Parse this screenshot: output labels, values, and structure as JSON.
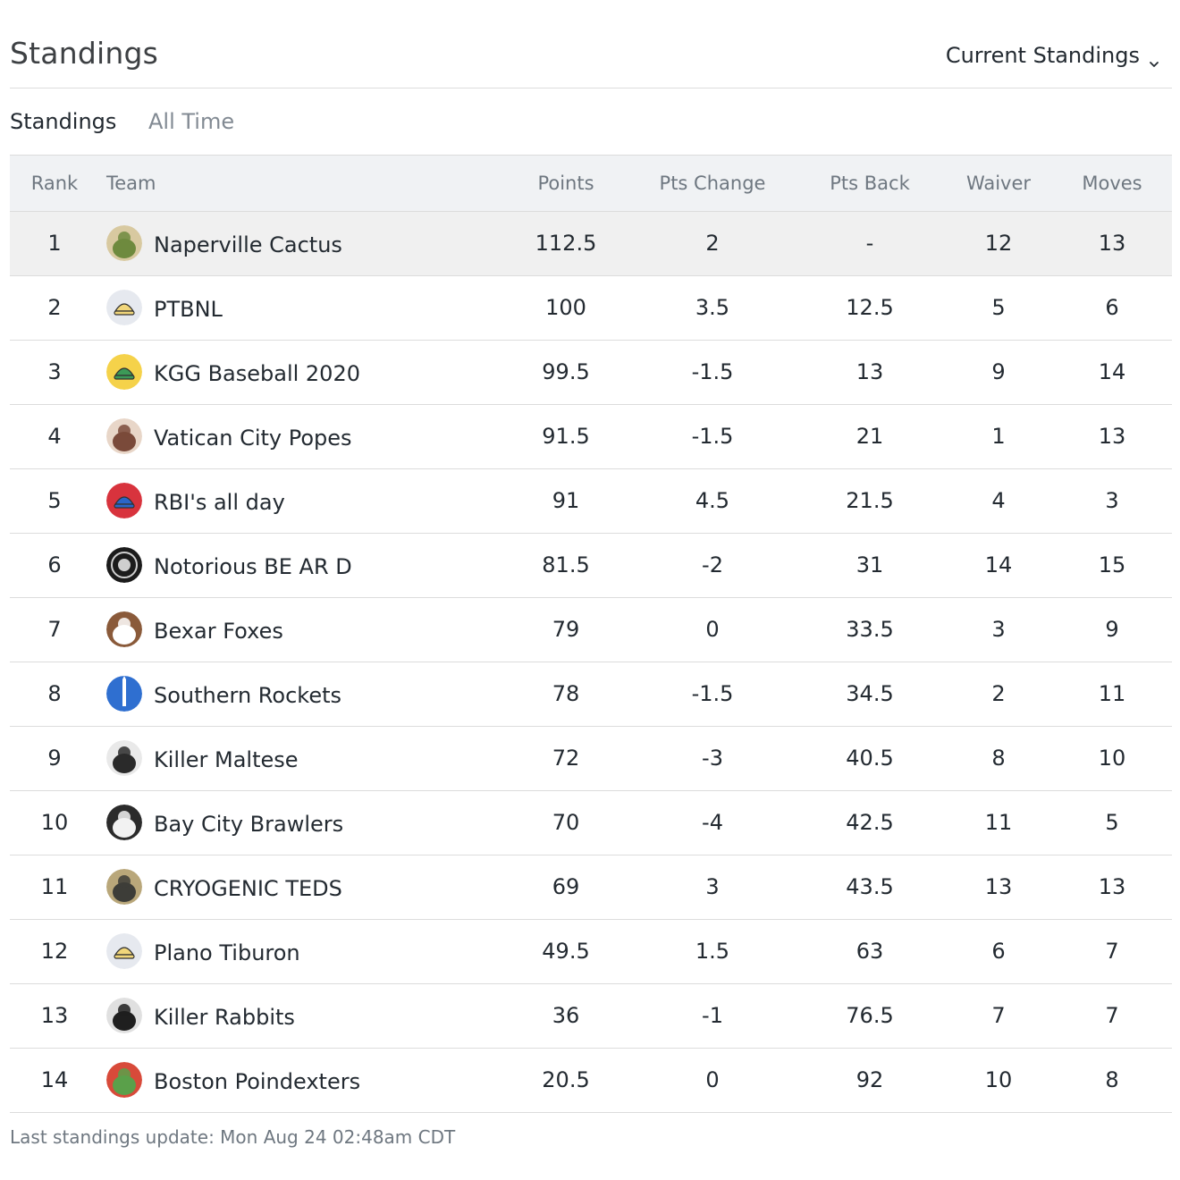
{
  "header": {
    "title": "Standings",
    "view_select": "Current Standings",
    "chevron_icon": "chevron-down-icon"
  },
  "tabs": [
    {
      "label": "Standings",
      "active": true
    },
    {
      "label": "All Time",
      "active": false
    }
  ],
  "table": {
    "columns": [
      "Rank",
      "Team",
      "Points",
      "Pts Change",
      "Pts Back",
      "Waiver",
      "Moves"
    ],
    "rows": [
      {
        "rank": "1",
        "team": "Naperville Cactus",
        "avatar": "cactus-avatar-icon",
        "avatar_colors": [
          "#6e8a3e",
          "#d8c9a0"
        ],
        "points": "112.5",
        "pts_change": "2",
        "change_sign": "pos",
        "pts_back": "-",
        "waiver": "12",
        "moves": "13",
        "highlight": true
      },
      {
        "rank": "2",
        "team": "PTBNL",
        "avatar": "cap-avatar-icon",
        "avatar_colors": [
          "#e6e9ef",
          "#f1d67a"
        ],
        "points": "100",
        "pts_change": "3.5",
        "change_sign": "pos",
        "pts_back": "12.5",
        "waiver": "5",
        "moves": "6",
        "highlight": false
      },
      {
        "rank": "3",
        "team": "KGG Baseball 2020",
        "avatar": "cap-avatar-icon",
        "avatar_colors": [
          "#f5d24a",
          "#3c9a57"
        ],
        "points": "99.5",
        "pts_change": "-1.5",
        "change_sign": "neg",
        "pts_back": "13",
        "waiver": "9",
        "moves": "14",
        "highlight": false
      },
      {
        "rank": "4",
        "team": "Vatican City Popes",
        "avatar": "photo-avatar-icon",
        "avatar_colors": [
          "#7a4a3a",
          "#e8d6c8"
        ],
        "points": "91.5",
        "pts_change": "-1.5",
        "change_sign": "neg",
        "pts_back": "21",
        "waiver": "1",
        "moves": "13",
        "highlight": false
      },
      {
        "rank": "5",
        "team": "RBI's all day",
        "avatar": "cap-avatar-icon",
        "avatar_colors": [
          "#d8333d",
          "#2a66c9"
        ],
        "points": "91",
        "pts_change": "4.5",
        "change_sign": "pos",
        "pts_back": "21.5",
        "waiver": "4",
        "moves": "3",
        "highlight": false
      },
      {
        "rank": "6",
        "team": "Notorious BE AR D",
        "avatar": "badge-avatar-icon",
        "avatar_colors": [
          "#1b1b1b",
          "#cfcfcf"
        ],
        "points": "81.5",
        "pts_change": "-2",
        "change_sign": "neg",
        "pts_back": "31",
        "waiver": "14",
        "moves": "15",
        "highlight": false
      },
      {
        "rank": "7",
        "team": "Bexar Foxes",
        "avatar": "photo-avatar-icon",
        "avatar_colors": [
          "#ffffff",
          "#8a5a3a"
        ],
        "points": "79",
        "pts_change": "0",
        "change_sign": "neu",
        "pts_back": "33.5",
        "waiver": "3",
        "moves": "9",
        "highlight": false
      },
      {
        "rank": "8",
        "team": "Southern Rockets",
        "avatar": "rocket-avatar-icon",
        "avatar_colors": [
          "#2f6fd0",
          "#ffffff"
        ],
        "points": "78",
        "pts_change": "-1.5",
        "change_sign": "neg",
        "pts_back": "34.5",
        "waiver": "2",
        "moves": "11",
        "highlight": false
      },
      {
        "rank": "9",
        "team": "Killer Maltese",
        "avatar": "dog-avatar-icon",
        "avatar_colors": [
          "#2a2a2a",
          "#e9e9e9"
        ],
        "points": "72",
        "pts_change": "-3",
        "change_sign": "neg",
        "pts_back": "40.5",
        "waiver": "8",
        "moves": "10",
        "highlight": false
      },
      {
        "rank": "10",
        "team": "Bay City Brawlers",
        "avatar": "dog-avatar-icon",
        "avatar_colors": [
          "#f2f2f2",
          "#2b2b2b"
        ],
        "points": "70",
        "pts_change": "-4",
        "change_sign": "neg",
        "pts_back": "42.5",
        "waiver": "11",
        "moves": "5",
        "highlight": false
      },
      {
        "rank": "11",
        "team": "CRYOGENIC TEDS",
        "avatar": "photo-avatar-icon",
        "avatar_colors": [
          "#3d3d38",
          "#b9a77a"
        ],
        "points": "69",
        "pts_change": "3",
        "change_sign": "pos",
        "pts_back": "43.5",
        "waiver": "13",
        "moves": "13",
        "highlight": false
      },
      {
        "rank": "12",
        "team": "Plano Tiburon",
        "avatar": "cap-avatar-icon",
        "avatar_colors": [
          "#e6e9ef",
          "#f1d67a"
        ],
        "points": "49.5",
        "pts_change": "1.5",
        "change_sign": "pos",
        "pts_back": "63",
        "waiver": "6",
        "moves": "7",
        "highlight": false
      },
      {
        "rank": "13",
        "team": "Killer Rabbits",
        "avatar": "photo-avatar-icon",
        "avatar_colors": [
          "#1f1f1f",
          "#e0e0e0"
        ],
        "points": "36",
        "pts_change": "-1",
        "change_sign": "neg",
        "pts_back": "76.5",
        "waiver": "7",
        "moves": "7",
        "highlight": false
      },
      {
        "rank": "14",
        "team": "Boston Poindexters",
        "avatar": "cartoon-avatar-icon",
        "avatar_colors": [
          "#5aa04a",
          "#d84a3a"
        ],
        "points": "20.5",
        "pts_change": "0",
        "change_sign": "neu",
        "pts_back": "92",
        "waiver": "10",
        "moves": "8",
        "highlight": false
      }
    ]
  },
  "footer": {
    "text": "Last standings update: Mon Aug 24 02:48am CDT"
  }
}
